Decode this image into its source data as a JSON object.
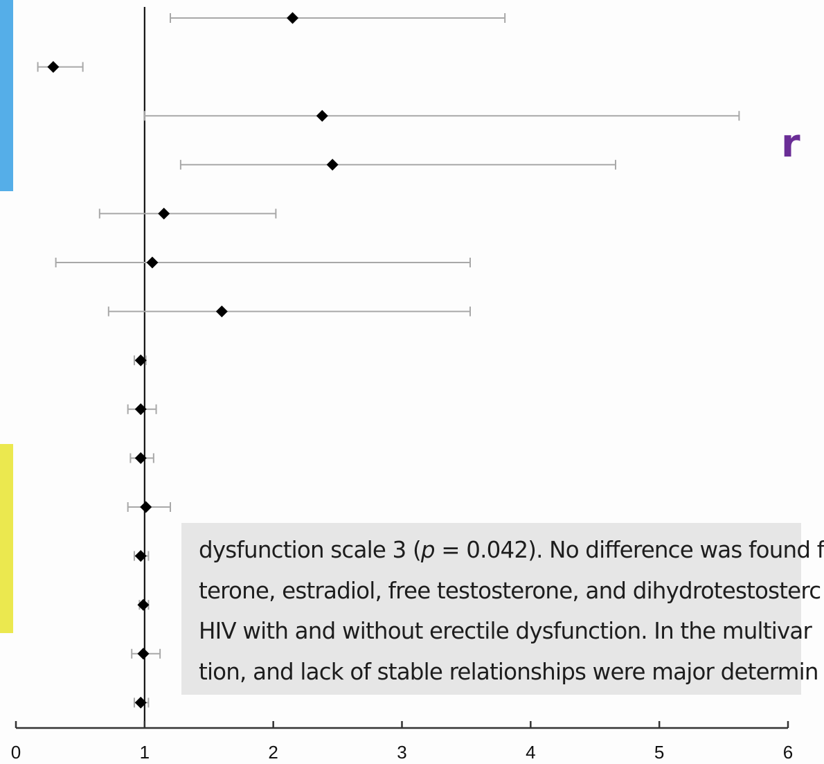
{
  "chart_data": {
    "type": "forest",
    "reference_line": 1,
    "xlim": [
      0,
      6
    ],
    "x_ticks": [
      "0",
      "1",
      "2",
      "3",
      "4",
      "5",
      "6"
    ],
    "rows": [
      {
        "estimate": 2.15,
        "lower": 1.2,
        "upper": 3.8
      },
      {
        "estimate": 0.29,
        "lower": 0.17,
        "upper": 0.52
      },
      {
        "estimate": 2.38,
        "lower": 1.0,
        "upper": 5.62
      },
      {
        "estimate": 2.46,
        "lower": 1.28,
        "upper": 4.66
      },
      {
        "estimate": 1.15,
        "lower": 0.65,
        "upper": 2.02
      },
      {
        "estimate": 1.06,
        "lower": 0.31,
        "upper": 3.53
      },
      {
        "estimate": 1.6,
        "lower": 0.72,
        "upper": 3.53
      },
      {
        "estimate": 0.97,
        "lower": 0.92,
        "upper": 1.01
      },
      {
        "estimate": 0.97,
        "lower": 0.87,
        "upper": 1.09
      },
      {
        "estimate": 0.97,
        "lower": 0.89,
        "upper": 1.07
      },
      {
        "estimate": 1.01,
        "lower": 0.87,
        "upper": 1.2
      },
      {
        "estimate": 0.97,
        "lower": 0.92,
        "upper": 1.03
      },
      {
        "estimate": 0.99,
        "lower": 0.96,
        "upper": 1.03
      },
      {
        "estimate": 0.99,
        "lower": 0.9,
        "upper": 1.12
      },
      {
        "estimate": 0.97,
        "lower": 0.92,
        "upper": 1.03
      }
    ],
    "grid": false
  },
  "overlay": {
    "line1_before": "dysfunction scale 3 (",
    "line1_p": "p",
    "line1_after": " = 0.042). No difference was found f",
    "line2": "terone, estradiol, free testosterone, and dihydrotestosterc",
    "line3": "HIV with and without erectile dysfunction. In the multivar",
    "line4": "tion, and lack of stable relationships were major determin"
  },
  "partial_heading": "r",
  "colors": {
    "blue_block": "#55aee8",
    "yellow_block": "#ebe84f",
    "purple_text": "#6a2d96",
    "overlay_bg": "#e6e6e6"
  }
}
